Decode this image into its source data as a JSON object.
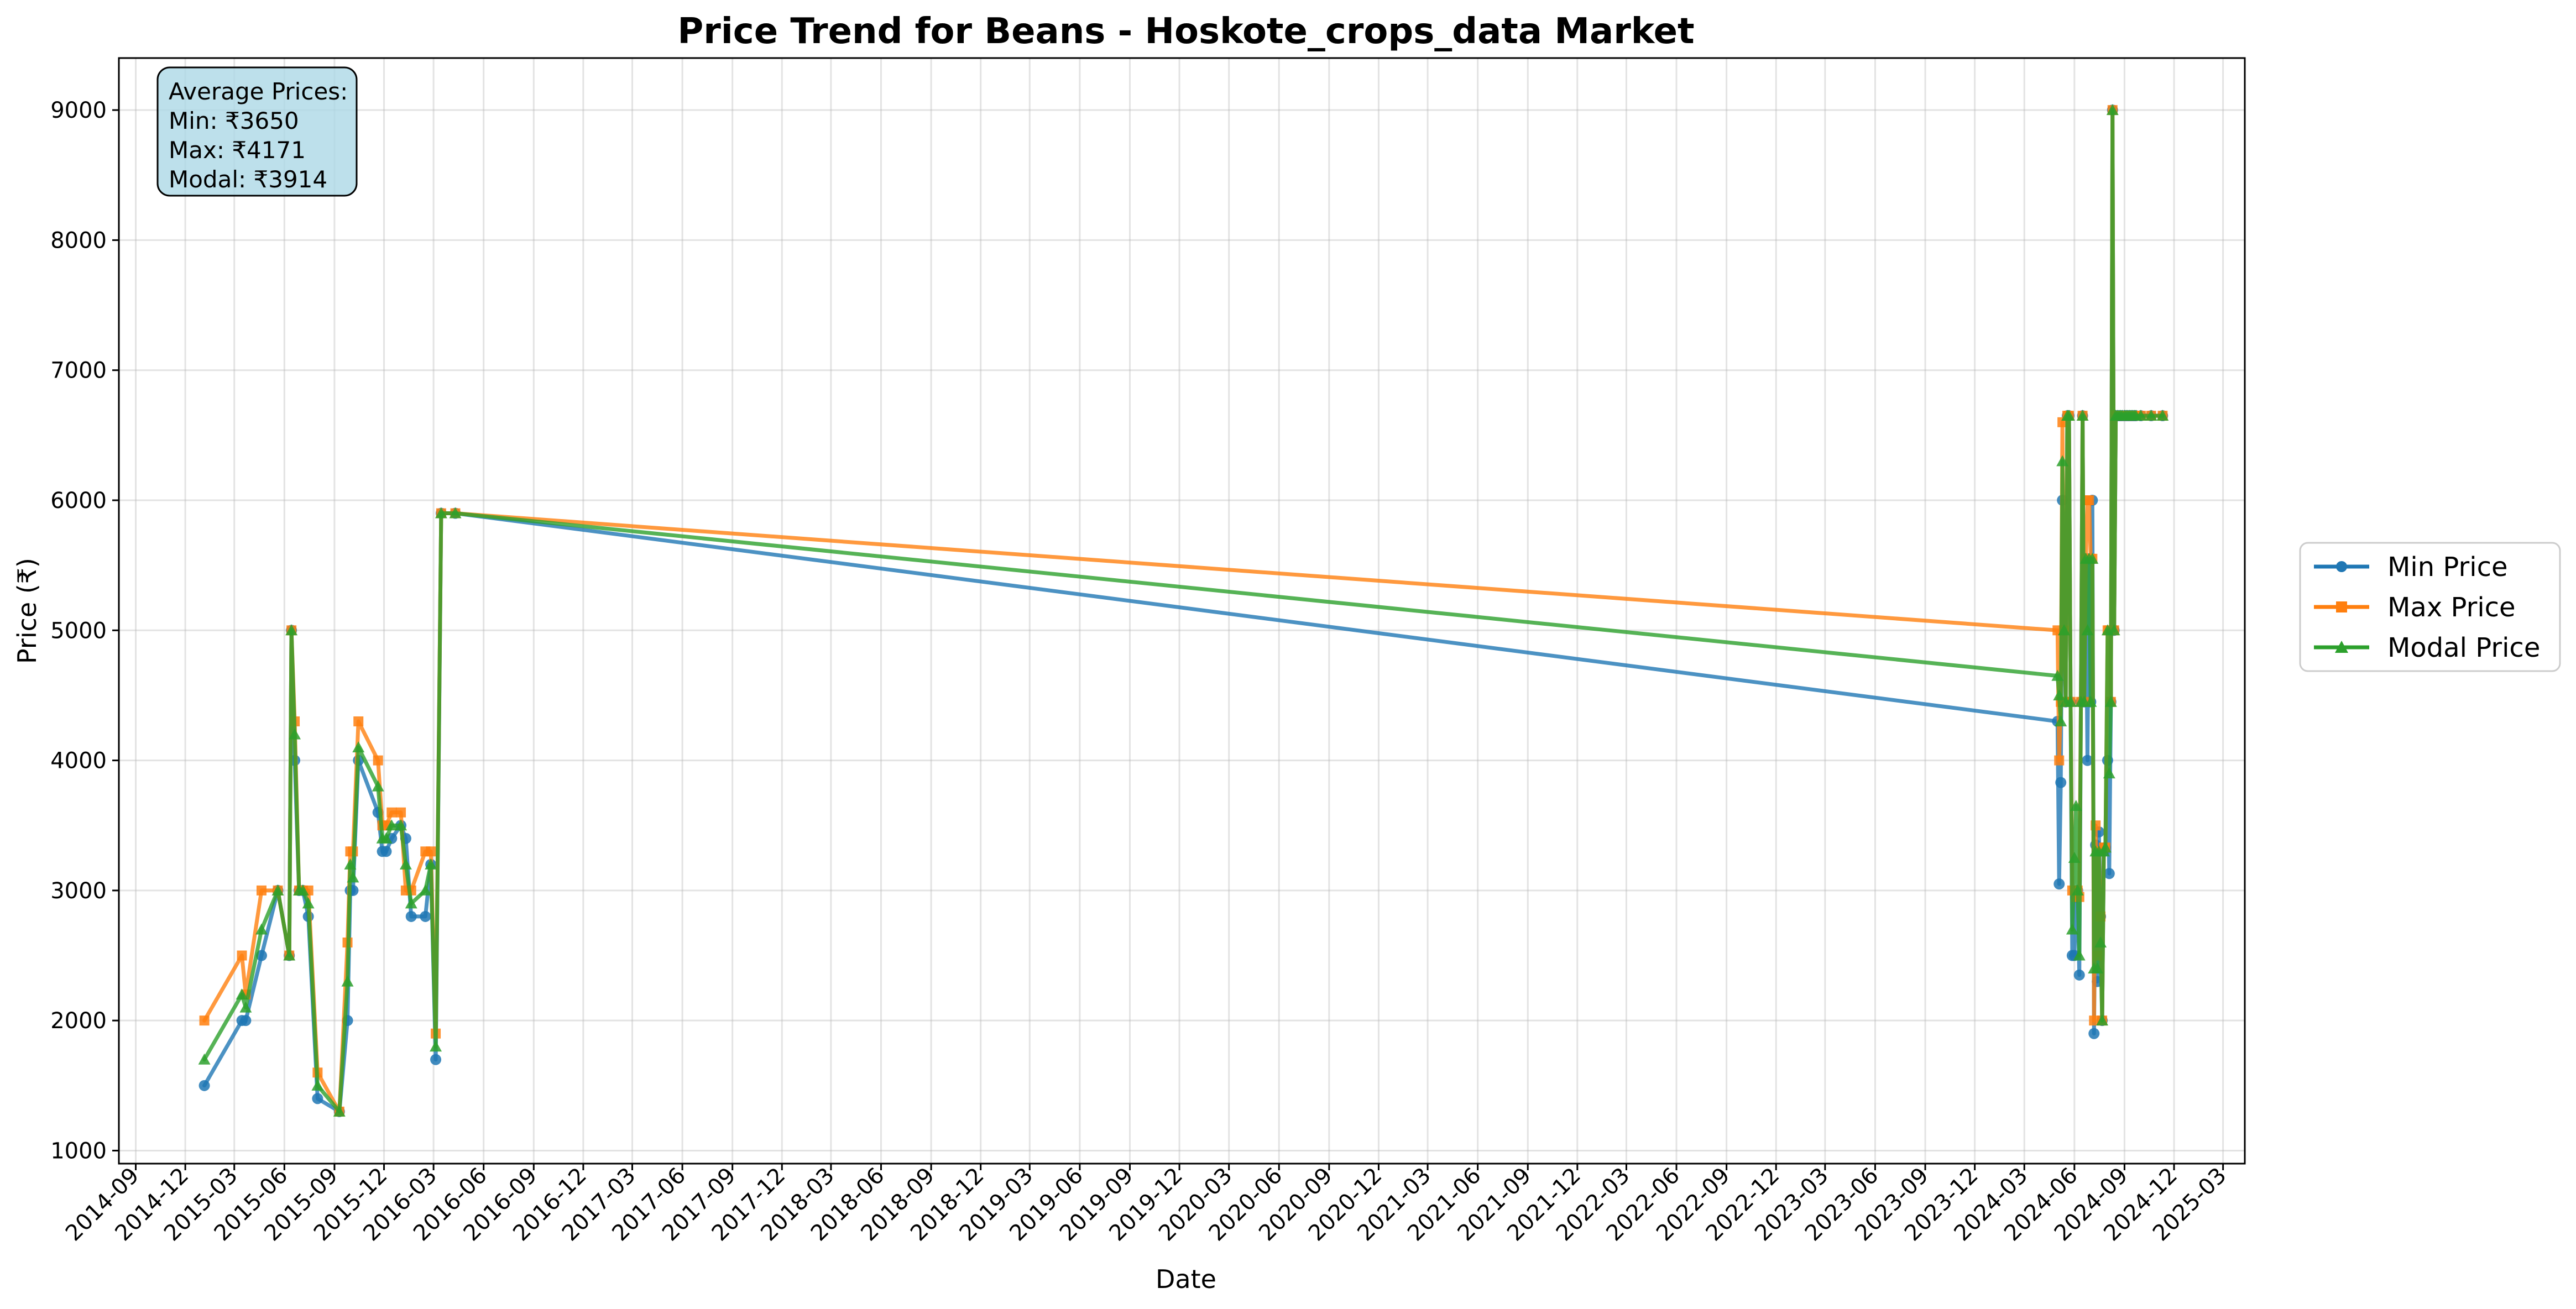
{
  "chart_data": {
    "type": "line",
    "title": "Price Trend for Beans - Hoskote_crops_data Market",
    "xlabel": "Date",
    "ylabel": "Price (₹)",
    "xlim": [
      "2014-08-01",
      "2025-04-10"
    ],
    "ylim": [
      900,
      9400
    ],
    "y_ticks": [
      1000,
      2000,
      3000,
      4000,
      5000,
      6000,
      7000,
      8000,
      9000
    ],
    "x_ticks": [
      "2014-09",
      "2014-12",
      "2015-03",
      "2015-06",
      "2015-09",
      "2015-12",
      "2016-03",
      "2016-06",
      "2016-09",
      "2016-12",
      "2017-03",
      "2017-06",
      "2017-09",
      "2017-12",
      "2018-03",
      "2018-06",
      "2018-09",
      "2018-12",
      "2019-03",
      "2019-06",
      "2019-09",
      "2019-12",
      "2020-03",
      "2020-06",
      "2020-09",
      "2020-12",
      "2021-03",
      "2021-06",
      "2021-09",
      "2021-12",
      "2022-03",
      "2022-06",
      "2022-09",
      "2022-12",
      "2023-03",
      "2023-06",
      "2023-09",
      "2023-12",
      "2024-03",
      "2024-06",
      "2024-09",
      "2024-12",
      "2025-03"
    ],
    "grid": true,
    "legend_position": "outside-right",
    "annotation": {
      "lines": [
        "Average Prices:",
        "Min: ₹3650",
        "Max: ₹4171",
        "Modal: ₹3914"
      ],
      "background": "#add8e6"
    },
    "x": [
      "2015-01-05",
      "2015-03-15",
      "2015-03-22",
      "2015-04-20",
      "2015-05-20",
      "2015-06-10",
      "2015-06-14",
      "2015-06-20",
      "2015-06-28",
      "2015-07-05",
      "2015-07-15",
      "2015-08-01",
      "2015-09-10",
      "2015-09-25",
      "2015-09-30",
      "2015-10-05",
      "2015-10-15",
      "2015-11-20",
      "2015-11-28",
      "2015-12-05",
      "2015-12-15",
      "2016-01-01",
      "2016-01-10",
      "2016-01-20",
      "2016-02-15",
      "2016-02-25",
      "2016-03-05",
      "2016-03-15",
      "2016-04-10",
      "2024-05-01",
      "2024-05-04",
      "2024-05-07",
      "2024-05-10",
      "2024-05-13",
      "2024-05-16",
      "2024-05-19",
      "2024-05-22",
      "2024-05-25",
      "2024-05-28",
      "2024-06-01",
      "2024-06-04",
      "2024-06-07",
      "2024-06-10",
      "2024-06-13",
      "2024-06-16",
      "2024-06-19",
      "2024-06-22",
      "2024-06-25",
      "2024-06-28",
      "2024-07-01",
      "2024-07-04",
      "2024-07-07",
      "2024-07-10",
      "2024-07-13",
      "2024-07-16",
      "2024-07-19",
      "2024-07-22",
      "2024-07-25",
      "2024-07-28",
      "2024-08-01",
      "2024-08-04",
      "2024-08-07",
      "2024-08-10",
      "2024-08-13",
      "2024-08-16",
      "2024-08-19",
      "2024-08-22",
      "2024-08-25",
      "2024-08-28",
      "2024-09-01",
      "2024-09-04",
      "2024-09-07",
      "2024-09-10",
      "2024-09-13",
      "2024-09-16",
      "2024-09-19",
      "2024-09-22",
      "2024-10-01",
      "2024-10-20",
      "2024-11-10"
    ],
    "series": [
      {
        "name": "Min Price",
        "color": "#1f77b4",
        "marker": "circle",
        "values": [
          1500,
          2000,
          2000,
          2500,
          3000,
          2500,
          5000,
          4000,
          3000,
          3000,
          2800,
          1400,
          1300,
          2000,
          3000,
          3000,
          4000,
          3600,
          3300,
          3300,
          3400,
          3500,
          3400,
          2800,
          2800,
          3200,
          1700,
          5900,
          5900,
          4300,
          3050,
          3830,
          6000,
          5000,
          4450,
          6650,
          6650,
          4450,
          2500,
          2500,
          2950,
          3000,
          2350,
          4450,
          6650,
          4450,
          5550,
          4000,
          5550,
          4450,
          6000,
          1900,
          3350,
          2300,
          3450,
          2800,
          2000,
          3300,
          3330,
          4000,
          3130,
          4450,
          9000,
          5000,
          6650,
          6650,
          6650,
          6650,
          6650,
          6650,
          6650,
          6650,
          6650,
          6650,
          6650,
          6650,
          6650,
          6650,
          6650,
          6650
        ]
      },
      {
        "name": "Max Price",
        "color": "#ff7f0e",
        "marker": "square",
        "values": [
          2000,
          2500,
          2200,
          3000,
          3000,
          2500,
          5000,
          4300,
          3000,
          3000,
          3000,
          1600,
          1300,
          2600,
          3300,
          3300,
          4300,
          4000,
          3500,
          3500,
          3600,
          3600,
          3000,
          3000,
          3300,
          3300,
          1900,
          5900,
          5900,
          5000,
          4000,
          4450,
          6600,
          5000,
          4450,
          6650,
          6650,
          4450,
          3000,
          3000,
          2950,
          3000,
          2950,
          4450,
          6650,
          4450,
          5550,
          6000,
          6000,
          5550,
          5550,
          2000,
          3500,
          2500,
          3300,
          2800,
          2000,
          3330,
          3330,
          5000,
          5000,
          4450,
          9000,
          5000,
          6650,
          6650,
          6650,
          6650,
          6650,
          6650,
          6650,
          6650,
          6650,
          6650,
          6650,
          6650,
          6650,
          6650,
          6650,
          6650
        ]
      },
      {
        "name": "Modal Price",
        "color": "#2ca02c",
        "marker": "triangle",
        "values": [
          1700,
          2200,
          2100,
          2700,
          3000,
          2500,
          5000,
          4200,
          3000,
          3000,
          2900,
          1500,
          1300,
          2300,
          3200,
          3100,
          4100,
          3800,
          3400,
          3400,
          3500,
          3500,
          3200,
          2900,
          3000,
          3200,
          1800,
          5900,
          5900,
          4650,
          4500,
          4300,
          6300,
          5000,
          4450,
          6650,
          6650,
          4450,
          2700,
          3250,
          3650,
          3000,
          2500,
          4450,
          6650,
          4450,
          5550,
          5000,
          5550,
          4450,
          5550,
          2400,
          3300,
          2400,
          3300,
          2600,
          2000,
          3300,
          3330,
          5000,
          3900,
          4450,
          9000,
          5000,
          6650,
          6650,
          6650,
          6650,
          6650,
          6650,
          6650,
          6650,
          6650,
          6650,
          6650,
          6650,
          6650,
          6650,
          6650,
          6650
        ]
      }
    ]
  }
}
